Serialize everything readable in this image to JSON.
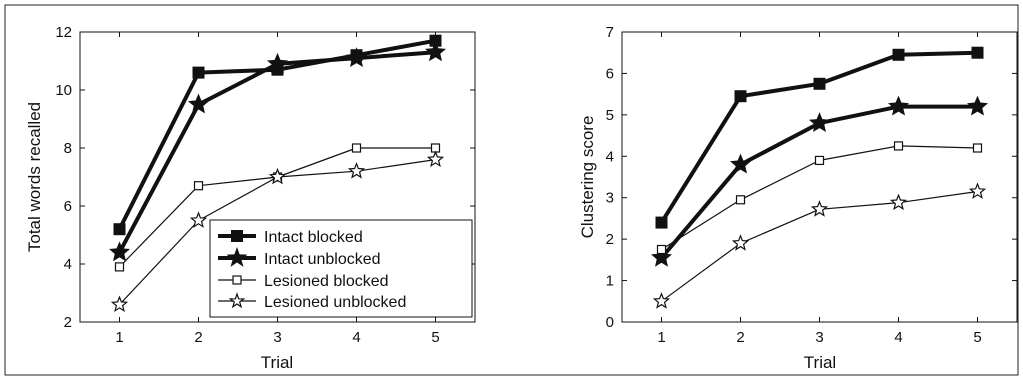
{
  "chart_data": [
    {
      "type": "line",
      "xlabel": "Trial",
      "ylabel": "Total words recalled",
      "x": [
        1,
        2,
        3,
        4,
        5
      ],
      "xlim": [
        0.5,
        5.5
      ],
      "ylim": [
        2,
        12
      ],
      "xticks": [
        "1",
        "2",
        "3",
        "4",
        "5"
      ],
      "yticks": [
        "2",
        "4",
        "6",
        "8",
        "10",
        "12"
      ],
      "legend_position": "lower-right",
      "series": [
        {
          "name": "Intact blocked",
          "marker": "square-filled",
          "weight": "thick",
          "values": [
            5.2,
            10.6,
            10.7,
            11.2,
            11.7
          ]
        },
        {
          "name": "Intact unblocked",
          "marker": "star-filled",
          "weight": "thick",
          "values": [
            4.4,
            9.5,
            10.9,
            11.1,
            11.3
          ]
        },
        {
          "name": "Lesioned blocked",
          "marker": "square-open",
          "weight": "thin",
          "values": [
            3.9,
            6.7,
            7.0,
            8.0,
            8.0
          ]
        },
        {
          "name": "Lesioned unblocked",
          "marker": "star-open",
          "weight": "thin",
          "values": [
            2.6,
            5.5,
            7.0,
            7.2,
            7.6
          ]
        }
      ]
    },
    {
      "type": "line",
      "xlabel": "Trial",
      "ylabel": "Clustering score",
      "x": [
        1,
        2,
        3,
        4,
        5
      ],
      "xlim": [
        0.5,
        5.5
      ],
      "ylim": [
        0,
        7
      ],
      "xticks": [
        "1",
        "2",
        "3",
        "4",
        "5"
      ],
      "yticks": [
        "0",
        "1",
        "2",
        "3",
        "4",
        "5",
        "6",
        "7"
      ],
      "series": [
        {
          "marker": "square-filled",
          "weight": "thick",
          "values": [
            2.4,
            5.45,
            5.75,
            6.45,
            6.5
          ]
        },
        {
          "marker": "star-filled",
          "weight": "thick",
          "values": [
            1.55,
            3.8,
            4.8,
            5.2,
            5.2
          ]
        },
        {
          "marker": "square-open",
          "weight": "thin",
          "values": [
            1.75,
            2.95,
            3.9,
            4.25,
            4.2
          ]
        },
        {
          "marker": "star-open",
          "weight": "thin",
          "values": [
            0.5,
            1.9,
            2.72,
            2.88,
            3.15
          ]
        }
      ]
    }
  ]
}
